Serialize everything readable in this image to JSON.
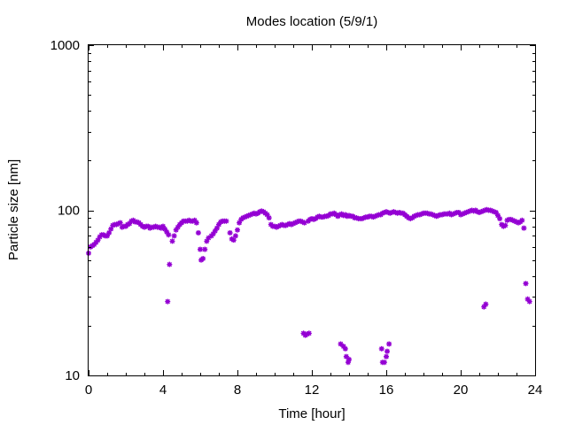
{
  "chart_data": {
    "type": "scatter",
    "title": "Modes location (5/9/1)",
    "xlabel": "Time [hour]",
    "ylabel": "Particle size [nm]",
    "xlim": [
      0,
      24
    ],
    "ylim": [
      10,
      1000
    ],
    "yscale": "log",
    "xticks": [
      0,
      4,
      8,
      12,
      16,
      20,
      24
    ],
    "xtick_labels": [
      "0",
      "4",
      "8",
      "12",
      "16",
      "20",
      "24"
    ],
    "yticks": [
      10,
      100,
      1000
    ],
    "ytick_labels": [
      "10",
      "100",
      "1000"
    ],
    "grid": false,
    "legend": "none",
    "marker": "star",
    "series": [
      {
        "color": "#9400d3",
        "points": [
          [
            0.0,
            55
          ],
          [
            0.1,
            60
          ],
          [
            0.2,
            61
          ],
          [
            0.3,
            62
          ],
          [
            0.4,
            64
          ],
          [
            0.5,
            66
          ],
          [
            0.6,
            69
          ],
          [
            0.7,
            71
          ],
          [
            0.8,
            71
          ],
          [
            0.9,
            70
          ],
          [
            1.0,
            70
          ],
          [
            1.1,
            73
          ],
          [
            1.2,
            77
          ],
          [
            1.3,
            81
          ],
          [
            1.4,
            82
          ],
          [
            1.5,
            82
          ],
          [
            1.6,
            83
          ],
          [
            1.7,
            84
          ],
          [
            1.8,
            79
          ],
          [
            1.9,
            80
          ],
          [
            2.0,
            80
          ],
          [
            2.1,
            82
          ],
          [
            2.2,
            83
          ],
          [
            2.3,
            86
          ],
          [
            2.4,
            87
          ],
          [
            2.5,
            85
          ],
          [
            2.6,
            85
          ],
          [
            2.7,
            84
          ],
          [
            2.8,
            82
          ],
          [
            2.9,
            80
          ],
          [
            3.0,
            79
          ],
          [
            3.1,
            80
          ],
          [
            3.2,
            80
          ],
          [
            3.3,
            78
          ],
          [
            3.4,
            79
          ],
          [
            3.5,
            79
          ],
          [
            3.6,
            80
          ],
          [
            3.7,
            79
          ],
          [
            3.8,
            79
          ],
          [
            3.9,
            78
          ],
          [
            4.0,
            80
          ],
          [
            4.1,
            77
          ],
          [
            4.2,
            74
          ],
          [
            4.3,
            71
          ],
          [
            4.25,
            28
          ],
          [
            4.35,
            47
          ],
          [
            4.5,
            65
          ],
          [
            4.6,
            70
          ],
          [
            4.7,
            76
          ],
          [
            4.8,
            79
          ],
          [
            4.9,
            82
          ],
          [
            5.0,
            84
          ],
          [
            5.1,
            86
          ],
          [
            5.2,
            86
          ],
          [
            5.3,
            86
          ],
          [
            5.4,
            87
          ],
          [
            5.5,
            86
          ],
          [
            5.6,
            86
          ],
          [
            5.7,
            87
          ],
          [
            5.8,
            84
          ],
          [
            5.9,
            73
          ],
          [
            6.0,
            58
          ],
          [
            6.05,
            50
          ],
          [
            6.15,
            51
          ],
          [
            6.25,
            58
          ],
          [
            6.35,
            65
          ],
          [
            6.45,
            68
          ],
          [
            6.6,
            70
          ],
          [
            6.7,
            72
          ],
          [
            6.8,
            75
          ],
          [
            6.9,
            78
          ],
          [
            7.0,
            82
          ],
          [
            7.1,
            85
          ],
          [
            7.2,
            86
          ],
          [
            7.3,
            86
          ],
          [
            7.4,
            86
          ],
          [
            7.6,
            73
          ],
          [
            7.7,
            67
          ],
          [
            7.8,
            66
          ],
          [
            7.9,
            70
          ],
          [
            8.0,
            76
          ],
          [
            8.1,
            84
          ],
          [
            8.2,
            88
          ],
          [
            8.3,
            90
          ],
          [
            8.4,
            91
          ],
          [
            8.5,
            92
          ],
          [
            8.6,
            93
          ],
          [
            8.7,
            94
          ],
          [
            8.8,
            95
          ],
          [
            8.9,
            96
          ],
          [
            9.0,
            95
          ],
          [
            9.1,
            96
          ],
          [
            9.2,
            98
          ],
          [
            9.3,
            99
          ],
          [
            9.4,
            98
          ],
          [
            9.5,
            96
          ],
          [
            9.6,
            94
          ],
          [
            9.7,
            90
          ],
          [
            9.8,
            82
          ],
          [
            9.9,
            80
          ],
          [
            10.0,
            80
          ],
          [
            10.1,
            79
          ],
          [
            10.2,
            80
          ],
          [
            10.3,
            81
          ],
          [
            10.4,
            82
          ],
          [
            10.5,
            81
          ],
          [
            10.6,
            81
          ],
          [
            10.7,
            82
          ],
          [
            10.8,
            83
          ],
          [
            10.9,
            82
          ],
          [
            11.0,
            83
          ],
          [
            11.1,
            84
          ],
          [
            11.2,
            85
          ],
          [
            11.3,
            86
          ],
          [
            11.4,
            86
          ],
          [
            11.5,
            85
          ],
          [
            11.6,
            84
          ],
          [
            11.55,
            18
          ],
          [
            11.65,
            17.5
          ],
          [
            11.75,
            17.8
          ],
          [
            11.85,
            18
          ],
          [
            11.8,
            86
          ],
          [
            11.9,
            88
          ],
          [
            12.0,
            89
          ],
          [
            12.1,
            88
          ],
          [
            12.2,
            89
          ],
          [
            12.3,
            91
          ],
          [
            12.4,
            92
          ],
          [
            12.5,
            91
          ],
          [
            12.6,
            91
          ],
          [
            12.7,
            92
          ],
          [
            12.8,
            92
          ],
          [
            12.9,
            93
          ],
          [
            13.0,
            95
          ],
          [
            13.1,
            95
          ],
          [
            13.2,
            96
          ],
          [
            13.3,
            94
          ],
          [
            13.4,
            92
          ],
          [
            13.5,
            94
          ],
          [
            13.6,
            95
          ],
          [
            13.55,
            15.5
          ],
          [
            13.7,
            15
          ],
          [
            13.8,
            14.5
          ],
          [
            13.85,
            13
          ],
          [
            13.95,
            12
          ],
          [
            14.0,
            12.5
          ],
          [
            13.7,
            93
          ],
          [
            13.8,
            94
          ],
          [
            13.9,
            92
          ],
          [
            14.0,
            93
          ],
          [
            14.1,
            92
          ],
          [
            14.2,
            92
          ],
          [
            14.3,
            90
          ],
          [
            14.4,
            90
          ],
          [
            14.5,
            89
          ],
          [
            14.6,
            89
          ],
          [
            14.7,
            89
          ],
          [
            14.8,
            90
          ],
          [
            14.9,
            91
          ],
          [
            15.0,
            91
          ],
          [
            15.1,
            92
          ],
          [
            15.2,
            92
          ],
          [
            15.3,
            91
          ],
          [
            15.4,
            92
          ],
          [
            15.5,
            93
          ],
          [
            15.6,
            94
          ],
          [
            15.7,
            94
          ],
          [
            15.8,
            96
          ],
          [
            15.75,
            14.5
          ],
          [
            15.8,
            12
          ],
          [
            15.9,
            12
          ],
          [
            16.0,
            13
          ],
          [
            16.05,
            14
          ],
          [
            16.15,
            15.5
          ],
          [
            15.9,
            97
          ],
          [
            16.0,
            98
          ],
          [
            16.1,
            97
          ],
          [
            16.2,
            96
          ],
          [
            16.3,
            97
          ],
          [
            16.4,
            98
          ],
          [
            16.5,
            97
          ],
          [
            16.6,
            96
          ],
          [
            16.7,
            97
          ],
          [
            16.8,
            96
          ],
          [
            16.9,
            96
          ],
          [
            17.0,
            94
          ],
          [
            17.1,
            92
          ],
          [
            17.2,
            90
          ],
          [
            17.3,
            89
          ],
          [
            17.4,
            90
          ],
          [
            17.5,
            92
          ],
          [
            17.6,
            93
          ],
          [
            17.7,
            94
          ],
          [
            17.8,
            94
          ],
          [
            17.9,
            95
          ],
          [
            18.0,
            96
          ],
          [
            18.1,
            96
          ],
          [
            18.2,
            96
          ],
          [
            18.3,
            95
          ],
          [
            18.4,
            95
          ],
          [
            18.5,
            94
          ],
          [
            18.6,
            93
          ],
          [
            18.7,
            92
          ],
          [
            18.8,
            93
          ],
          [
            18.9,
            94
          ],
          [
            19.0,
            94
          ],
          [
            19.1,
            95
          ],
          [
            19.2,
            95
          ],
          [
            19.3,
            95
          ],
          [
            19.4,
            96
          ],
          [
            19.5,
            94
          ],
          [
            19.6,
            95
          ],
          [
            19.7,
            96
          ],
          [
            19.8,
            97
          ],
          [
            19.9,
            97
          ],
          [
            20.0,
            94
          ],
          [
            20.1,
            95
          ],
          [
            20.2,
            96
          ],
          [
            20.3,
            97
          ],
          [
            20.4,
            98
          ],
          [
            20.5,
            99
          ],
          [
            20.6,
            100
          ],
          [
            20.7,
            99
          ],
          [
            20.8,
            100
          ],
          [
            20.9,
            98
          ],
          [
            21.0,
            97
          ],
          [
            21.1,
            98
          ],
          [
            21.2,
            99
          ],
          [
            21.3,
            100
          ],
          [
            21.4,
            101
          ],
          [
            21.25,
            26
          ],
          [
            21.35,
            27
          ],
          [
            21.5,
            100
          ],
          [
            21.6,
            100
          ],
          [
            21.7,
            99
          ],
          [
            21.8,
            98
          ],
          [
            21.9,
            97
          ],
          [
            22.0,
            93
          ],
          [
            22.1,
            89
          ],
          [
            22.2,
            82
          ],
          [
            22.3,
            80
          ],
          [
            22.4,
            81
          ],
          [
            22.5,
            87
          ],
          [
            22.6,
            88
          ],
          [
            22.7,
            88
          ],
          [
            22.8,
            87
          ],
          [
            22.9,
            86
          ],
          [
            23.0,
            85
          ],
          [
            23.1,
            84
          ],
          [
            23.2,
            85
          ],
          [
            23.3,
            87
          ],
          [
            23.4,
            78
          ],
          [
            23.5,
            36
          ],
          [
            23.6,
            29
          ],
          [
            23.7,
            28
          ]
        ]
      }
    ]
  }
}
